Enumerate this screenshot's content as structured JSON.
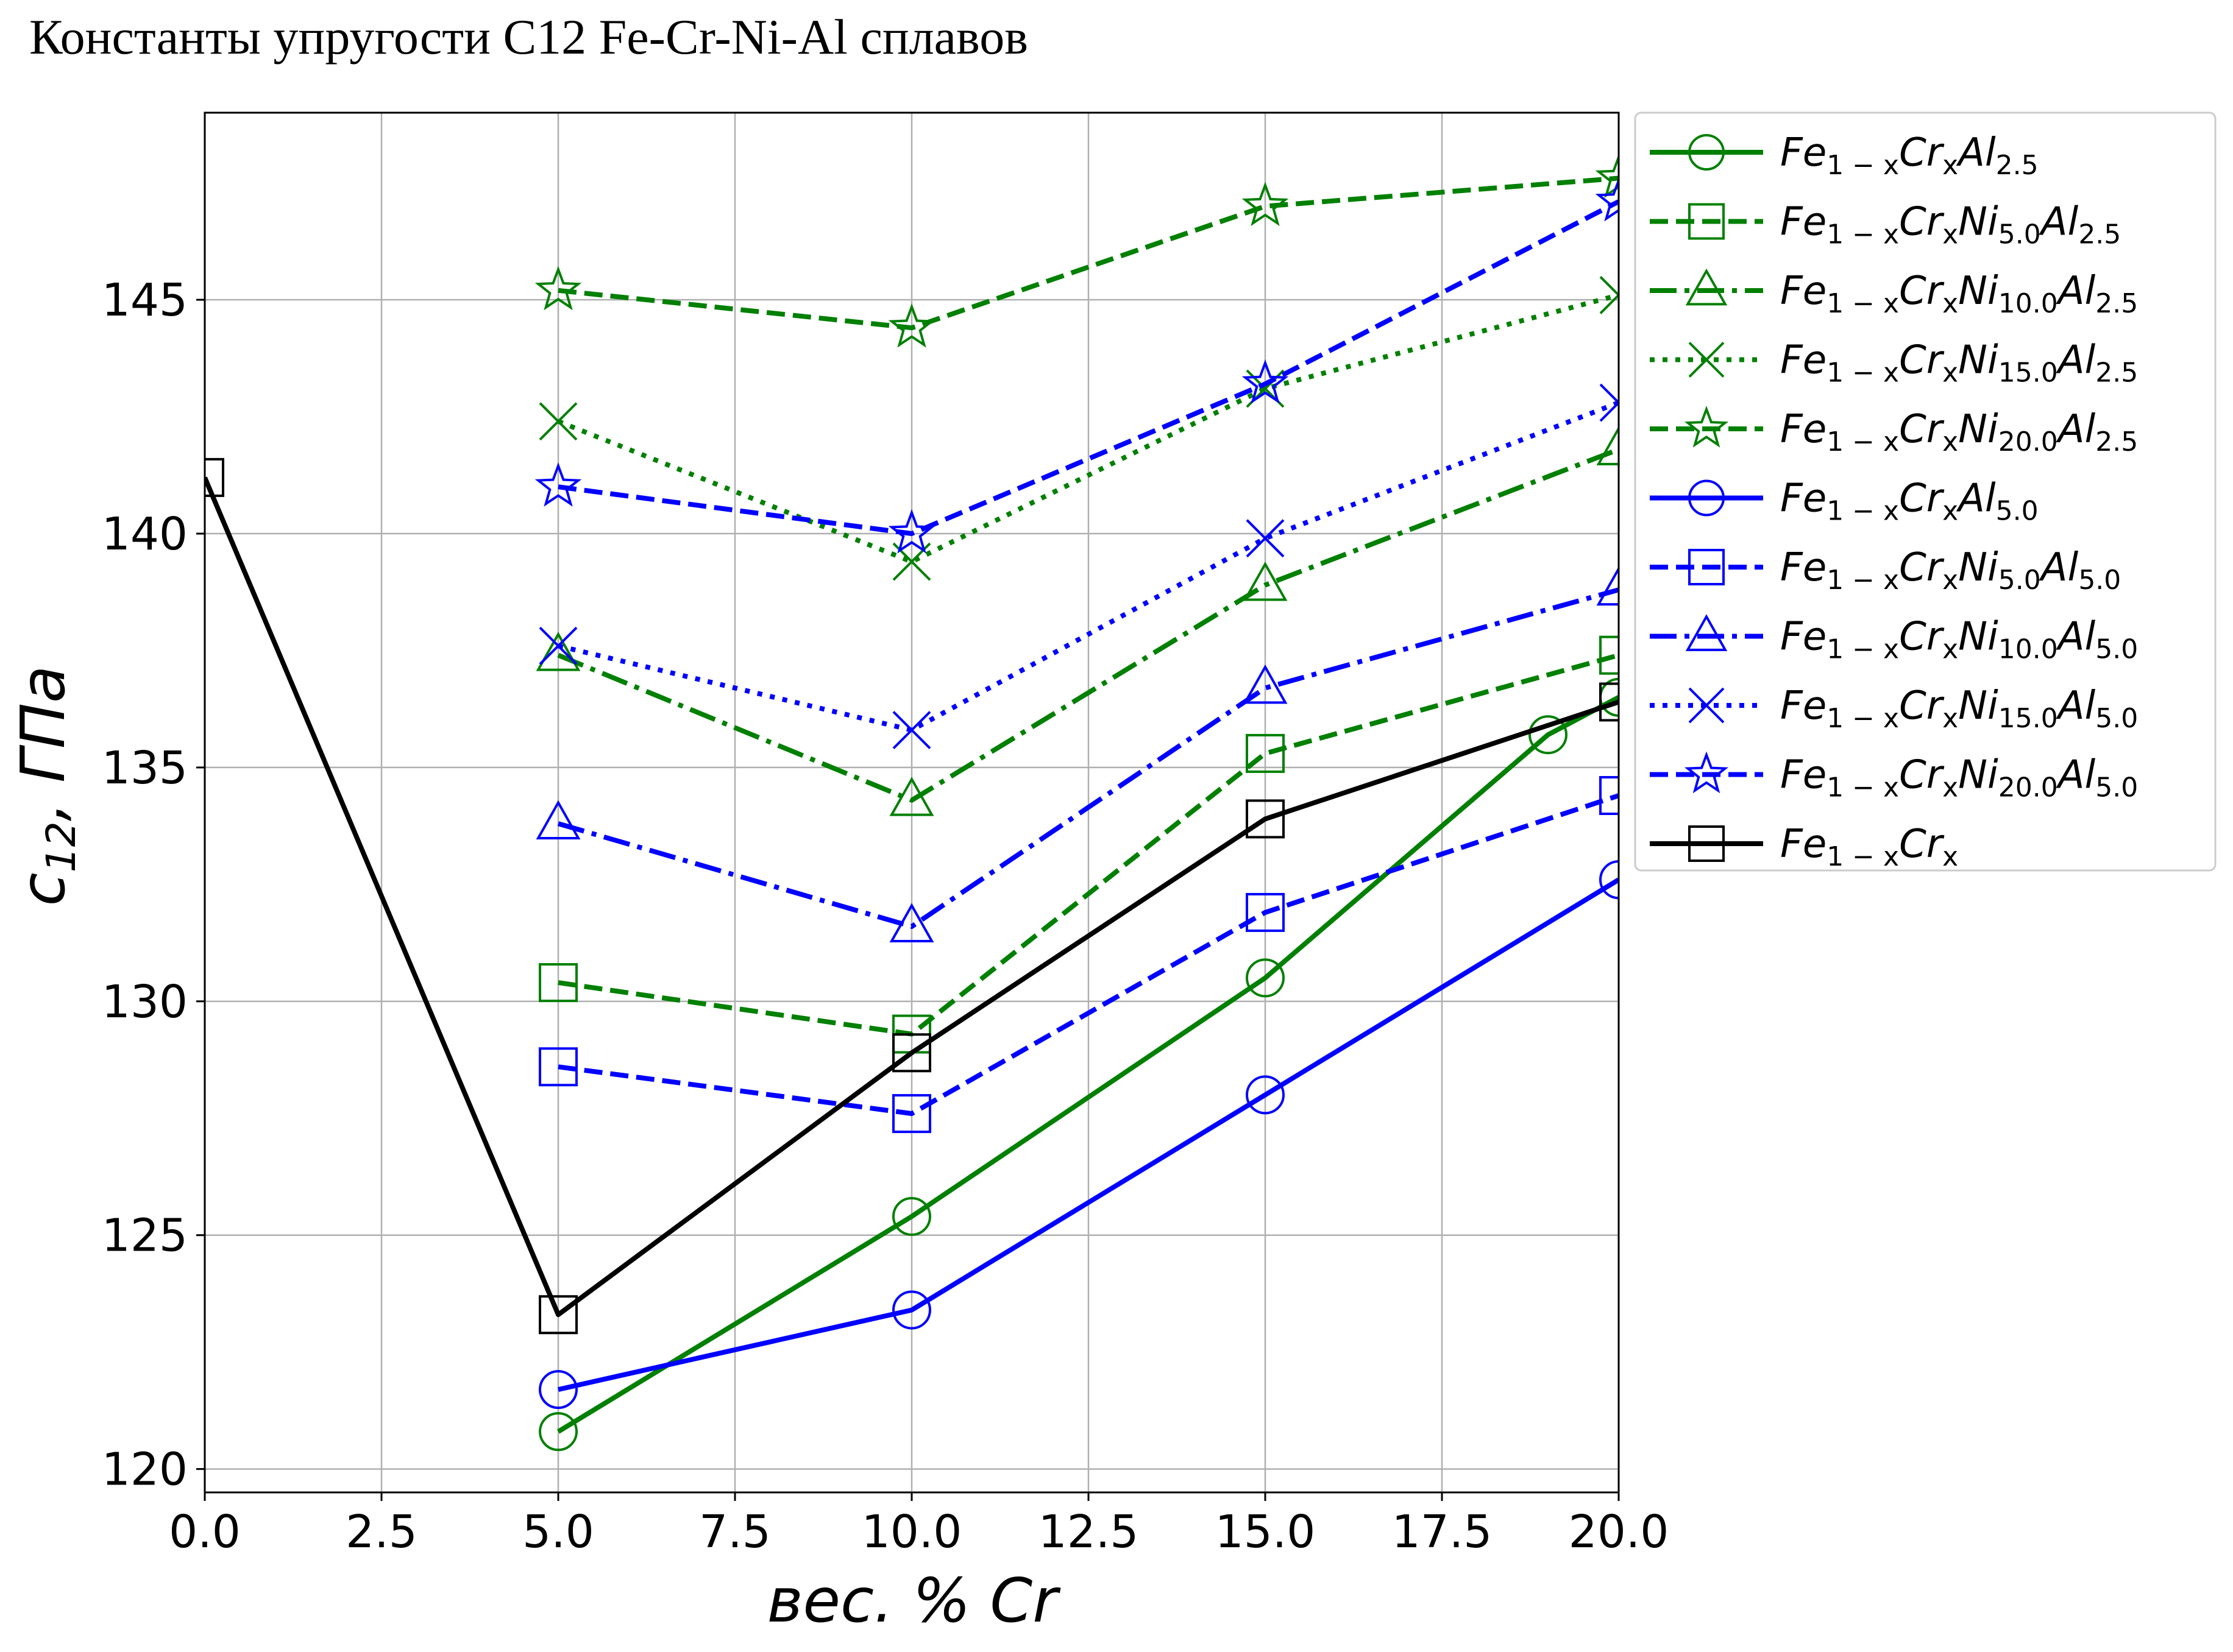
{
  "chart_data": {
    "type": "line",
    "title": "Константы упругости C12 Fe-Cr-Ni-Al сплавов",
    "xlabel": "вес. % Cr",
    "ylabel_main": "c",
    "ylabel_sub": "12",
    "ylabel_unit": ",  ГПа",
    "xlim": [
      0,
      20
    ],
    "ylim": [
      119.5,
      149
    ],
    "xticks": [
      "0.0",
      "2.5",
      "5.0",
      "7.5",
      "10.0",
      "12.5",
      "15.0",
      "17.5",
      "20.0"
    ],
    "yticks": [
      "120",
      "125",
      "130",
      "135",
      "140",
      "145"
    ],
    "grid": true,
    "legend_position": "outside-right-top",
    "series": [
      {
        "name_parts": [
          [
            "Fe",
            ""
          ],
          [
            "1 − x",
            "sub"
          ],
          [
            "Cr",
            ""
          ],
          [
            "x",
            "sub"
          ],
          [
            "Al",
            ""
          ],
          [
            "2.5",
            "sub"
          ]
        ],
        "color": "#008000",
        "dash": "solid",
        "marker": "circle",
        "x": [
          5,
          10,
          15,
          19,
          20
        ],
        "y": [
          120.8,
          125.4,
          130.5,
          135.7,
          136.5
        ]
      },
      {
        "name_parts": [
          [
            "Fe",
            ""
          ],
          [
            "1 − x",
            "sub"
          ],
          [
            "Cr",
            ""
          ],
          [
            "x",
            "sub"
          ],
          [
            "Ni",
            ""
          ],
          [
            "5.0",
            "sub"
          ],
          [
            "Al",
            ""
          ],
          [
            "2.5",
            "sub"
          ]
        ],
        "color": "#008000",
        "dash": "dashed",
        "marker": "square",
        "x": [
          5,
          10,
          15,
          20
        ],
        "y": [
          130.4,
          129.3,
          135.3,
          137.4
        ]
      },
      {
        "name_parts": [
          [
            "Fe",
            ""
          ],
          [
            "1 − x",
            "sub"
          ],
          [
            "Cr",
            ""
          ],
          [
            "x",
            "sub"
          ],
          [
            "Ni",
            ""
          ],
          [
            "10.0",
            "sub"
          ],
          [
            "Al",
            ""
          ],
          [
            "2.5",
            "sub"
          ]
        ],
        "color": "#008000",
        "dash": "dashdot",
        "marker": "triangle",
        "x": [
          5,
          10,
          15,
          20
        ],
        "y": [
          137.4,
          134.3,
          138.9,
          141.8
        ]
      },
      {
        "name_parts": [
          [
            "Fe",
            ""
          ],
          [
            "1 − x",
            "sub"
          ],
          [
            "Cr",
            ""
          ],
          [
            "x",
            "sub"
          ],
          [
            "Ni",
            ""
          ],
          [
            "15.0",
            "sub"
          ],
          [
            "Al",
            ""
          ],
          [
            "2.5",
            "sub"
          ]
        ],
        "color": "#008000",
        "dash": "dotted",
        "marker": "x",
        "x": [
          5,
          10,
          15,
          20
        ],
        "y": [
          142.4,
          139.4,
          143.1,
          145.1
        ]
      },
      {
        "name_parts": [
          [
            "Fe",
            ""
          ],
          [
            "1 − x",
            "sub"
          ],
          [
            "Cr",
            ""
          ],
          [
            "x",
            "sub"
          ],
          [
            "Ni",
            ""
          ],
          [
            "20.0",
            "sub"
          ],
          [
            "Al",
            ""
          ],
          [
            "2.5",
            "sub"
          ]
        ],
        "color": "#008000",
        "dash": "dashed",
        "marker": "star",
        "x": [
          5,
          10,
          15,
          20
        ],
        "y": [
          145.2,
          144.4,
          147.0,
          147.6
        ]
      },
      {
        "name_parts": [
          [
            "Fe",
            ""
          ],
          [
            "1 − x",
            "sub"
          ],
          [
            "Cr",
            ""
          ],
          [
            "x",
            "sub"
          ],
          [
            "Al",
            ""
          ],
          [
            "5.0",
            "sub"
          ]
        ],
        "color": "#0000ff",
        "dash": "solid",
        "marker": "circle",
        "x": [
          5,
          10,
          15,
          20
        ],
        "y": [
          121.7,
          123.4,
          128.0,
          132.6
        ]
      },
      {
        "name_parts": [
          [
            "Fe",
            ""
          ],
          [
            "1 − x",
            "sub"
          ],
          [
            "Cr",
            ""
          ],
          [
            "x",
            "sub"
          ],
          [
            "Ni",
            ""
          ],
          [
            "5.0",
            "sub"
          ],
          [
            "Al",
            ""
          ],
          [
            "5.0",
            "sub"
          ]
        ],
        "color": "#0000ff",
        "dash": "dashed",
        "marker": "square",
        "x": [
          5,
          10,
          15,
          20
        ],
        "y": [
          128.6,
          127.6,
          131.9,
          134.4
        ]
      },
      {
        "name_parts": [
          [
            "Fe",
            ""
          ],
          [
            "1 − x",
            "sub"
          ],
          [
            "Cr",
            ""
          ],
          [
            "x",
            "sub"
          ],
          [
            "Ni",
            ""
          ],
          [
            "10.0",
            "sub"
          ],
          [
            "Al",
            ""
          ],
          [
            "5.0",
            "sub"
          ]
        ],
        "color": "#0000ff",
        "dash": "dashdot",
        "marker": "triangle",
        "x": [
          5,
          10,
          15,
          20
        ],
        "y": [
          133.8,
          131.6,
          136.7,
          138.8
        ]
      },
      {
        "name_parts": [
          [
            "Fe",
            ""
          ],
          [
            "1 − x",
            "sub"
          ],
          [
            "Cr",
            ""
          ],
          [
            "x",
            "sub"
          ],
          [
            "Ni",
            ""
          ],
          [
            "15.0",
            "sub"
          ],
          [
            "Al",
            ""
          ],
          [
            "5.0",
            "sub"
          ]
        ],
        "color": "#0000ff",
        "dash": "dotted",
        "marker": "x",
        "x": [
          5,
          10,
          15,
          20
        ],
        "y": [
          137.6,
          135.8,
          139.9,
          142.8
        ]
      },
      {
        "name_parts": [
          [
            "Fe",
            ""
          ],
          [
            "1 − x",
            "sub"
          ],
          [
            "Cr",
            ""
          ],
          [
            "x",
            "sub"
          ],
          [
            "Ni",
            ""
          ],
          [
            "20.0",
            "sub"
          ],
          [
            "Al",
            ""
          ],
          [
            "5.0",
            "sub"
          ]
        ],
        "color": "#0000ff",
        "dash": "dashed",
        "marker": "star",
        "x": [
          5,
          10,
          15,
          20
        ],
        "y": [
          141.0,
          140.0,
          143.2,
          147.1
        ]
      },
      {
        "name_parts": [
          [
            "Fe",
            ""
          ],
          [
            "1 − x",
            "sub"
          ],
          [
            "Cr",
            ""
          ],
          [
            "x",
            "sub"
          ]
        ],
        "color": "#000000",
        "dash": "solid",
        "marker": "square",
        "x": [
          0,
          5,
          10,
          15,
          20
        ],
        "y": [
          141.2,
          123.3,
          128.9,
          133.9,
          136.4
        ]
      }
    ]
  }
}
